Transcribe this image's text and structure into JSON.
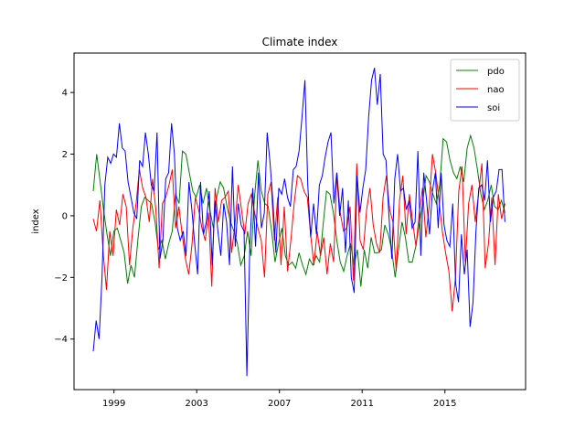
{
  "chart_data": {
    "type": "line",
    "title": "Climate index",
    "xlabel": "",
    "ylabel": "index",
    "xlim": [
      1997.07,
      2018.9
    ],
    "ylim": [
      -5.64,
      5.28
    ],
    "x_ticks": [
      1999,
      2003,
      2007,
      2011,
      2015
    ],
    "x_tick_labels": [
      "1999",
      "2003",
      "2007",
      "2011",
      "2015"
    ],
    "y_ticks": [
      -4,
      -2,
      0,
      2,
      4
    ],
    "y_tick_labels": [
      "−4",
      "−2",
      "0",
      "2",
      "4"
    ],
    "grid": false,
    "legend": {
      "placement": "top-right"
    },
    "x_start": 1998.0,
    "x_step": 0.1667,
    "series": [
      {
        "name": "pdo",
        "color": "#008000",
        "values": [
          0.8,
          2.0,
          1.1,
          0.2,
          -0.6,
          -1.3,
          -0.5,
          -0.4,
          -0.8,
          -1.2,
          -2.2,
          -1.6,
          -2.0,
          -0.8,
          0.3,
          0.6,
          0.5,
          0.4,
          -0.2,
          -1.1,
          -0.8,
          -1.4,
          -0.9,
          -0.5,
          0.7,
          0.4,
          2.1,
          2.0,
          1.4,
          0.8,
          0.6,
          1.0,
          0.4,
          0.9,
          0.2,
          -0.4,
          0.6,
          1.1,
          0.9,
          0.3,
          -0.2,
          -0.5,
          -0.9,
          -1.6,
          -1.3,
          -0.5,
          -1.3,
          0.6,
          1.8,
          0.8,
          0.4,
          0.3,
          -0.5,
          -1.5,
          -0.9,
          -0.4,
          -1.3,
          -1.6,
          -1.5,
          -1.7,
          -1.2,
          -1.6,
          -1.9,
          -1.4,
          -1.6,
          -1.3,
          -1.5,
          -0.3,
          0.8,
          0.7,
          0.1,
          -0.8,
          -1.5,
          -1.8,
          -1.3,
          -0.9,
          -1.6,
          -1.1,
          -2.3,
          -1.1,
          -1.7,
          -0.7,
          -1.2,
          -1.2,
          -1.1,
          -0.3,
          -0.6,
          -1.1,
          -2.0,
          -1.1,
          -0.2,
          -0.7,
          -1.5,
          -1.5,
          -1.0,
          -0.3,
          0.4,
          1.3,
          1.1,
          0.7,
          0.4,
          1.0,
          2.5,
          2.4,
          1.8,
          1.4,
          1.2,
          1.6,
          1.1,
          2.2,
          2.6,
          2.2,
          1.5,
          0.7,
          0.2,
          0.5,
          1.0,
          0.3,
          0.2,
          0.5,
          0.1
        ]
      },
      {
        "name": "nao",
        "color": "#ff0000",
        "values": [
          -0.1,
          -0.5,
          0.5,
          -1.2,
          -2.4,
          -0.5,
          -1.3,
          0.2,
          -0.3,
          0.7,
          0.3,
          -1.6,
          -0.4,
          0.4,
          1.5,
          0.9,
          0.6,
          -0.2,
          1.2,
          0.2,
          -1.7,
          0.4,
          0.6,
          1.0,
          1.5,
          -0.4,
          0.3,
          -0.6,
          -1.4,
          -1.9,
          -0.9,
          0.6,
          0.2,
          -0.4,
          -0.8,
          0.1,
          -2.3,
          0.9,
          -0.2,
          0.5,
          0.6,
          0.8,
          -1.2,
          -0.3,
          1.0,
          0.2,
          -0.6,
          0.4,
          0.7,
          0.1,
          -0.4,
          -0.8,
          -2.0,
          0.7,
          1.1,
          -0.8,
          0.6,
          -1.6,
          0.3,
          -1.8,
          -0.8,
          0.4,
          1.3,
          1.2,
          0.8,
          0.6,
          -0.6,
          -1.6,
          -0.5,
          -1.3,
          -0.7,
          -1.9,
          -0.9,
          -1.5,
          1.4,
          0.1,
          -0.5,
          -0.4,
          0.3,
          -2.1,
          1.7,
          -0.8,
          -1.1,
          0.2,
          0.9,
          -0.3,
          -0.9,
          -1.2,
          0.6,
          1.3,
          0.2,
          -0.2,
          -1.8,
          0.5,
          1.3,
          -0.6,
          0.7,
          -0.2,
          -1.0,
          0.1,
          0.9,
          -0.7,
          0.3,
          2.0,
          1.4,
          0.5,
          -0.5,
          -1.2,
          -1.8,
          -3.1,
          -2.0,
          0.8,
          1.6,
          -1.5,
          0.4,
          1.0,
          -0.2,
          0.7,
          1.7,
          -1.7,
          -0.9,
          0.6,
          -1.6,
          0.7,
          -0.1,
          0.4
        ]
      },
      {
        "name": "soi",
        "color": "#0000ff",
        "values": [
          -4.4,
          -3.4,
          -4.0,
          -2.0,
          1.0,
          1.9,
          1.7,
          2.0,
          1.9,
          3.0,
          2.2,
          2.1,
          1.1,
          0.6,
          0.1,
          -0.1,
          1.8,
          1.6,
          2.7,
          2.0,
          1.0,
          0.8,
          2.7,
          -1.4,
          -0.8,
          1.2,
          1.4,
          3.0,
          2.0,
          -0.4,
          -0.8,
          -0.5,
          -1.3,
          1.1,
          0.2,
          -0.9,
          -1.9,
          1.1,
          -0.6,
          -0.2,
          0.8,
          -1.6,
          0.5,
          -0.5,
          -1.3,
          0.4,
          -0.2,
          -1.6,
          1.6,
          -1.0,
          0.4,
          -0.3,
          -0.5,
          -5.2,
          -1.0,
          0.9,
          -1.0,
          1.4,
          -0.4,
          0.1,
          2.7,
          1.7,
          0.4,
          -1.2,
          0.9,
          0.7,
          1.2,
          0.6,
          0.3,
          1.5,
          1.6,
          2.1,
          3.2,
          4.4,
          1.0,
          -0.7,
          0.4,
          -0.6,
          1.0,
          1.3,
          1.9,
          2.4,
          2.7,
          0.4,
          1.4,
          0.0,
          0.9,
          -1.2,
          0.5,
          -2.0,
          -2.5,
          1.3,
          0.1,
          0.9,
          1.5,
          3.2,
          4.4,
          4.8,
          3.6,
          4.6,
          2.0,
          1.8,
          0.0,
          -1.4,
          1.2,
          2.0,
          0.8,
          0.9,
          0.2,
          0.5,
          -0.4,
          -0.2,
          2.1,
          -1.3,
          1.4,
          0.5,
          -0.6,
          0.8,
          1.4,
          -0.4,
          1.4,
          -0.3,
          -0.8,
          -1.0,
          0.4,
          -2.2,
          -2.8,
          -0.6,
          -1.9,
          -1.1,
          -3.6,
          -2.8,
          -0.5,
          0.9,
          1.0,
          0.5,
          1.8,
          -0.2,
          0.6,
          0.8,
          1.5,
          1.5,
          -0.2
        ]
      }
    ]
  }
}
